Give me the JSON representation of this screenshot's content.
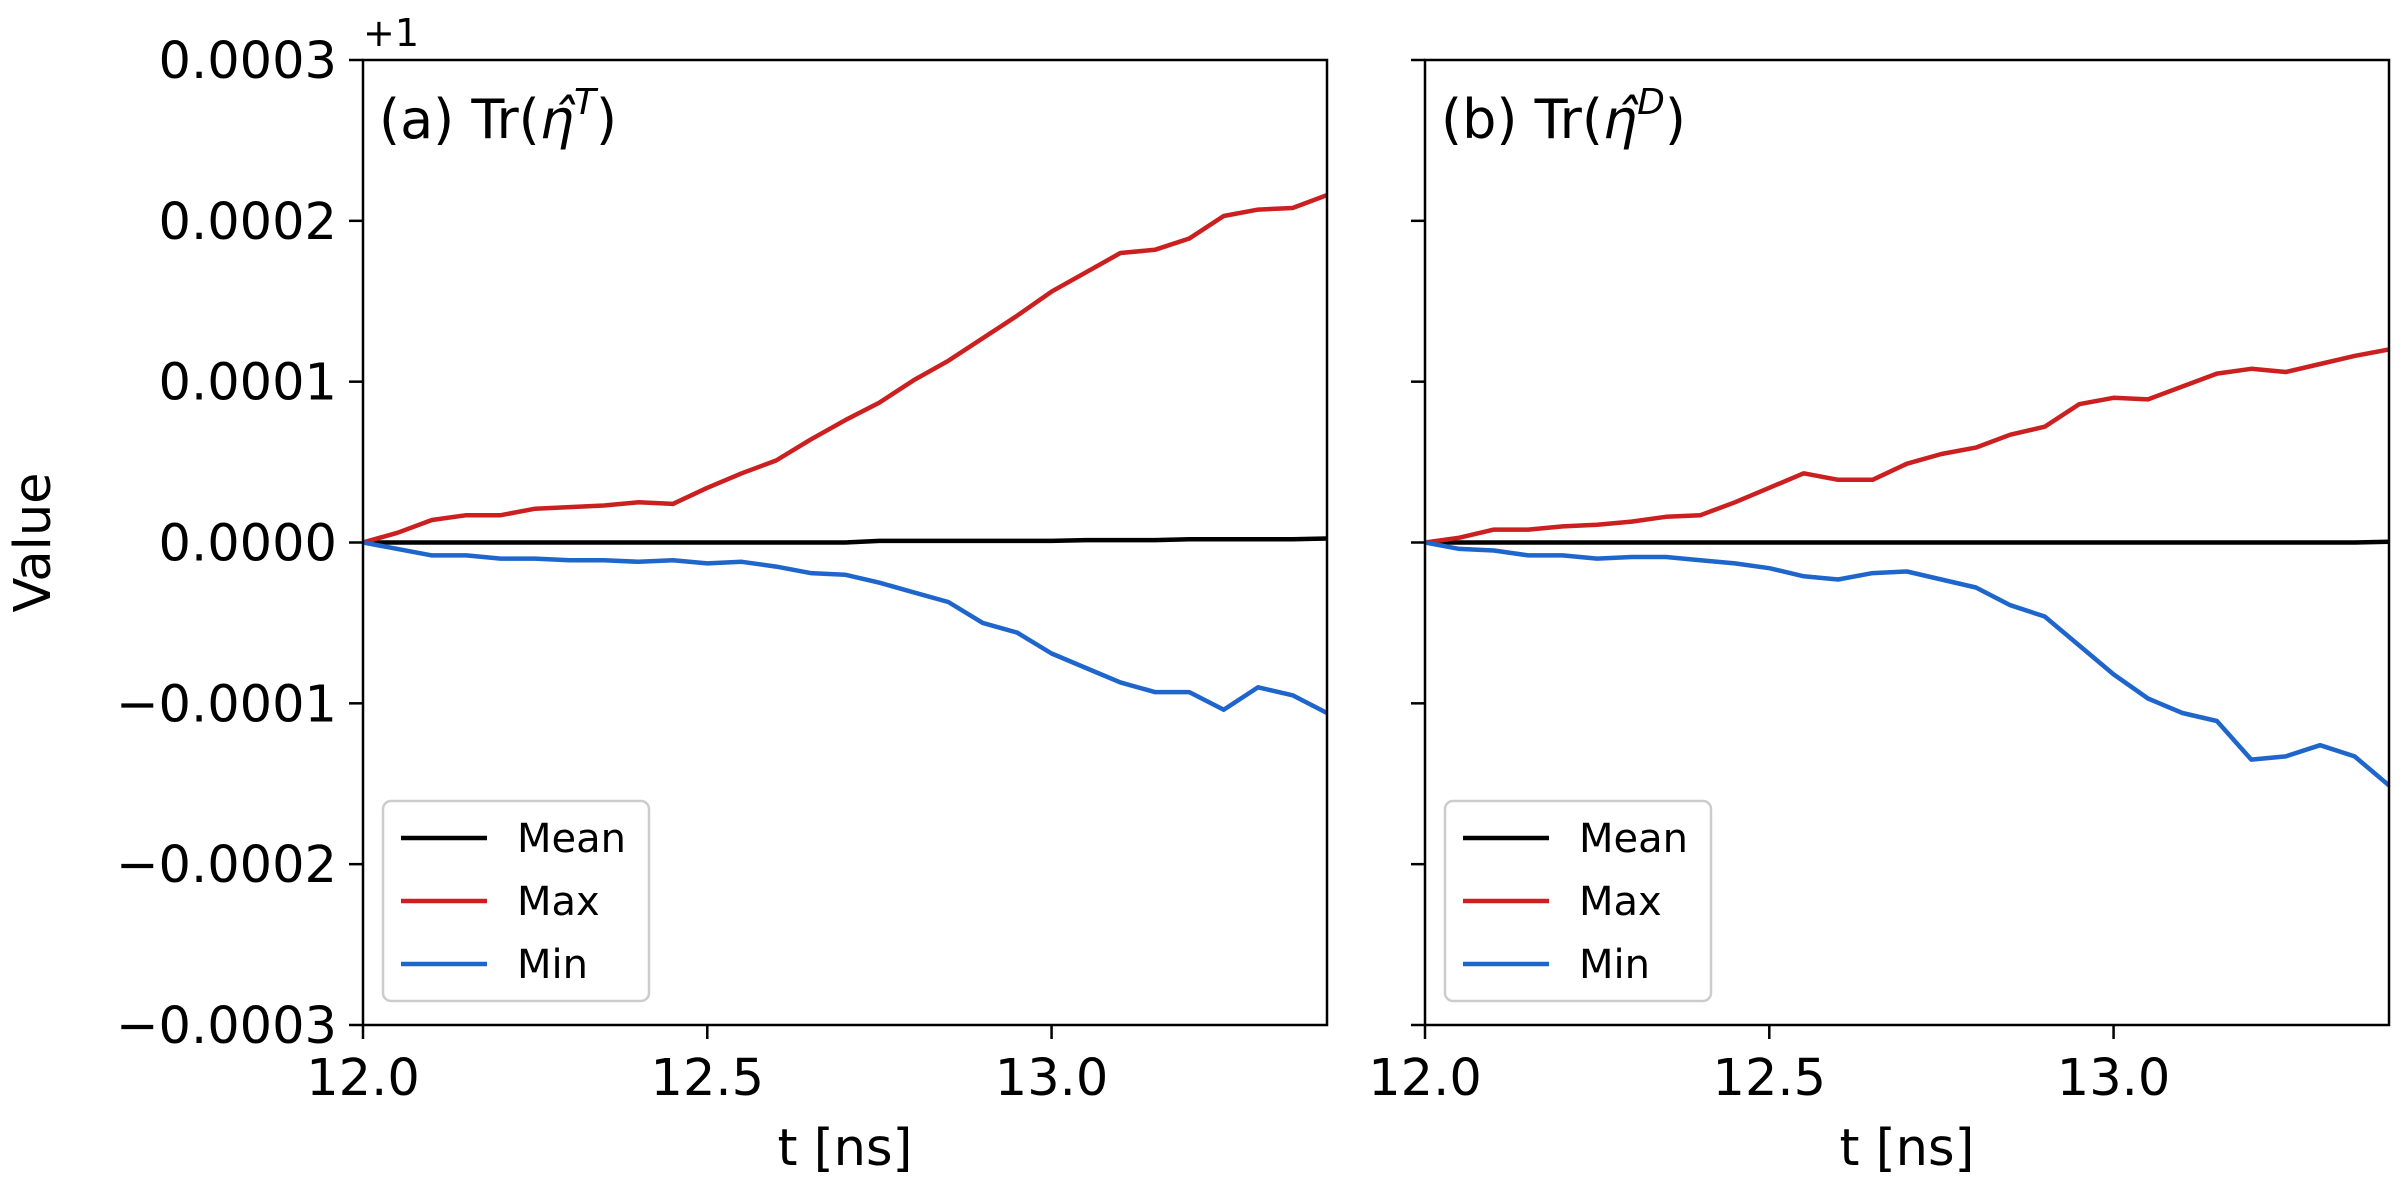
{
  "chart_data": [
    {
      "type": "line",
      "title_prefix": "(a) Tr(",
      "title_symbol": "η̂",
      "title_superscript": "T",
      "title_suffix": ")",
      "xlabel": "t [ns]",
      "ylabel": "Value",
      "y_offset_label": "+1",
      "xlim": [
        12.0,
        13.4
      ],
      "ylim": [
        -0.0003,
        0.0003
      ],
      "x_ticks": [
        12.0,
        12.5,
        13.0
      ],
      "x_tick_labels": [
        "12.0",
        "12.5",
        "13.0"
      ],
      "y_ticks": [
        -0.0003,
        -0.0002,
        -0.0001,
        0.0,
        0.0001,
        0.0002,
        0.0003
      ],
      "y_tick_labels": [
        "−0.0003",
        "−0.0002",
        "−0.0001",
        "0.0000",
        "0.0001",
        "0.0002",
        "0.0003"
      ],
      "x": [
        12.0,
        12.05,
        12.1,
        12.15,
        12.2,
        12.25,
        12.3,
        12.35,
        12.4,
        12.45,
        12.5,
        12.55,
        12.6,
        12.65,
        12.7,
        12.75,
        12.8,
        12.85,
        12.9,
        12.95,
        13.0,
        13.05,
        13.1,
        13.15,
        13.2,
        13.25,
        13.3,
        13.35,
        13.4
      ],
      "legend_position": "lower-left",
      "series": [
        {
          "name": "Mean",
          "color": "#000000",
          "values": [
            0.0,
            0.0,
            0.0,
            0.0,
            0.0,
            0.0,
            0.0,
            0.0,
            0.0,
            0.0,
            0.0,
            0.0,
            0.0,
            0.0,
            0.0,
            1e-06,
            1e-06,
            1e-06,
            1e-06,
            1e-06,
            1e-06,
            1.5e-06,
            1.5e-06,
            1.5e-06,
            2e-06,
            2e-06,
            2e-06,
            2e-06,
            2.5e-06
          ]
        },
        {
          "name": "Max",
          "color": "#cc1f1f",
          "values": [
            0.0,
            6e-06,
            1.4e-05,
            1.7e-05,
            1.7e-05,
            2.1e-05,
            2.2e-05,
            2.3e-05,
            2.5e-05,
            2.4e-05,
            3.4e-05,
            4.3e-05,
            5.1e-05,
            6.4e-05,
            7.6e-05,
            8.7e-05,
            0.000101,
            0.000113,
            0.000127,
            0.000141,
            0.000156,
            0.000168,
            0.00018,
            0.000182,
            0.000189,
            0.000203,
            0.000207,
            0.000208,
            0.000216
          ]
        },
        {
          "name": "Min",
          "color": "#1f66cc",
          "values": [
            0.0,
            -4e-06,
            -8e-06,
            -8e-06,
            -1e-05,
            -1e-05,
            -1.1e-05,
            -1.1e-05,
            -1.2e-05,
            -1.1e-05,
            -1.3e-05,
            -1.2e-05,
            -1.5e-05,
            -1.9e-05,
            -2e-05,
            -2.5e-05,
            -3.1e-05,
            -3.7e-05,
            -5e-05,
            -5.6e-05,
            -6.9e-05,
            -7.8e-05,
            -8.7e-05,
            -9.3e-05,
            -9.3e-05,
            -0.000104,
            -9e-05,
            -9.5e-05,
            -0.000106
          ]
        }
      ]
    },
    {
      "type": "line",
      "title_prefix": "(b) Tr(",
      "title_symbol": "η̂",
      "title_superscript": "D",
      "title_suffix": ")",
      "xlabel": "t [ns]",
      "ylabel": "",
      "xlim": [
        12.0,
        13.4
      ],
      "ylim": [
        -0.0003,
        0.0003
      ],
      "x_ticks": [
        12.0,
        12.5,
        13.0
      ],
      "x_tick_labels": [
        "12.0",
        "12.5",
        "13.0"
      ],
      "y_ticks": [
        -0.0003,
        -0.0002,
        -0.0001,
        0.0,
        0.0001,
        0.0002,
        0.0003
      ],
      "x": [
        12.0,
        12.05,
        12.1,
        12.15,
        12.2,
        12.25,
        12.3,
        12.35,
        12.4,
        12.45,
        12.5,
        12.55,
        12.6,
        12.65,
        12.7,
        12.75,
        12.8,
        12.85,
        12.9,
        12.95,
        13.0,
        13.05,
        13.1,
        13.15,
        13.2,
        13.25,
        13.3,
        13.35,
        13.4
      ],
      "legend_position": "lower-left",
      "series": [
        {
          "name": "Mean",
          "color": "#000000",
          "values": [
            0.0,
            0.0,
            0.0,
            0.0,
            0.0,
            0.0,
            0.0,
            0.0,
            0.0,
            0.0,
            0.0,
            0.0,
            0.0,
            0.0,
            0.0,
            0.0,
            0.0,
            0.0,
            0.0,
            0.0,
            0.0,
            0.0,
            0.0,
            0.0,
            0.0,
            0.0,
            0.0,
            0.0,
            5e-07
          ]
        },
        {
          "name": "Max",
          "color": "#cc1f1f",
          "values": [
            0.0,
            3e-06,
            8e-06,
            8e-06,
            1e-05,
            1.1e-05,
            1.3e-05,
            1.6e-05,
            1.7e-05,
            2.5e-05,
            3.4e-05,
            4.3e-05,
            3.9e-05,
            3.9e-05,
            4.9e-05,
            5.5e-05,
            5.9e-05,
            6.7e-05,
            7.2e-05,
            8.6e-05,
            9e-05,
            8.9e-05,
            9.7e-05,
            0.000105,
            0.000108,
            0.000106,
            0.000111,
            0.000116,
            0.00012
          ]
        },
        {
          "name": "Min",
          "color": "#1f66cc",
          "values": [
            0.0,
            -4e-06,
            -5e-06,
            -8e-06,
            -8e-06,
            -1e-05,
            -9e-06,
            -9e-06,
            -1.1e-05,
            -1.3e-05,
            -1.6e-05,
            -2.1e-05,
            -2.3e-05,
            -1.9e-05,
            -1.8e-05,
            -2.3e-05,
            -2.8e-05,
            -3.9e-05,
            -4.6e-05,
            -6.4e-05,
            -8.2e-05,
            -9.7e-05,
            -0.000106,
            -0.000111,
            -0.000135,
            -0.000133,
            -0.000126,
            -0.000133,
            -0.000151
          ]
        }
      ]
    }
  ]
}
